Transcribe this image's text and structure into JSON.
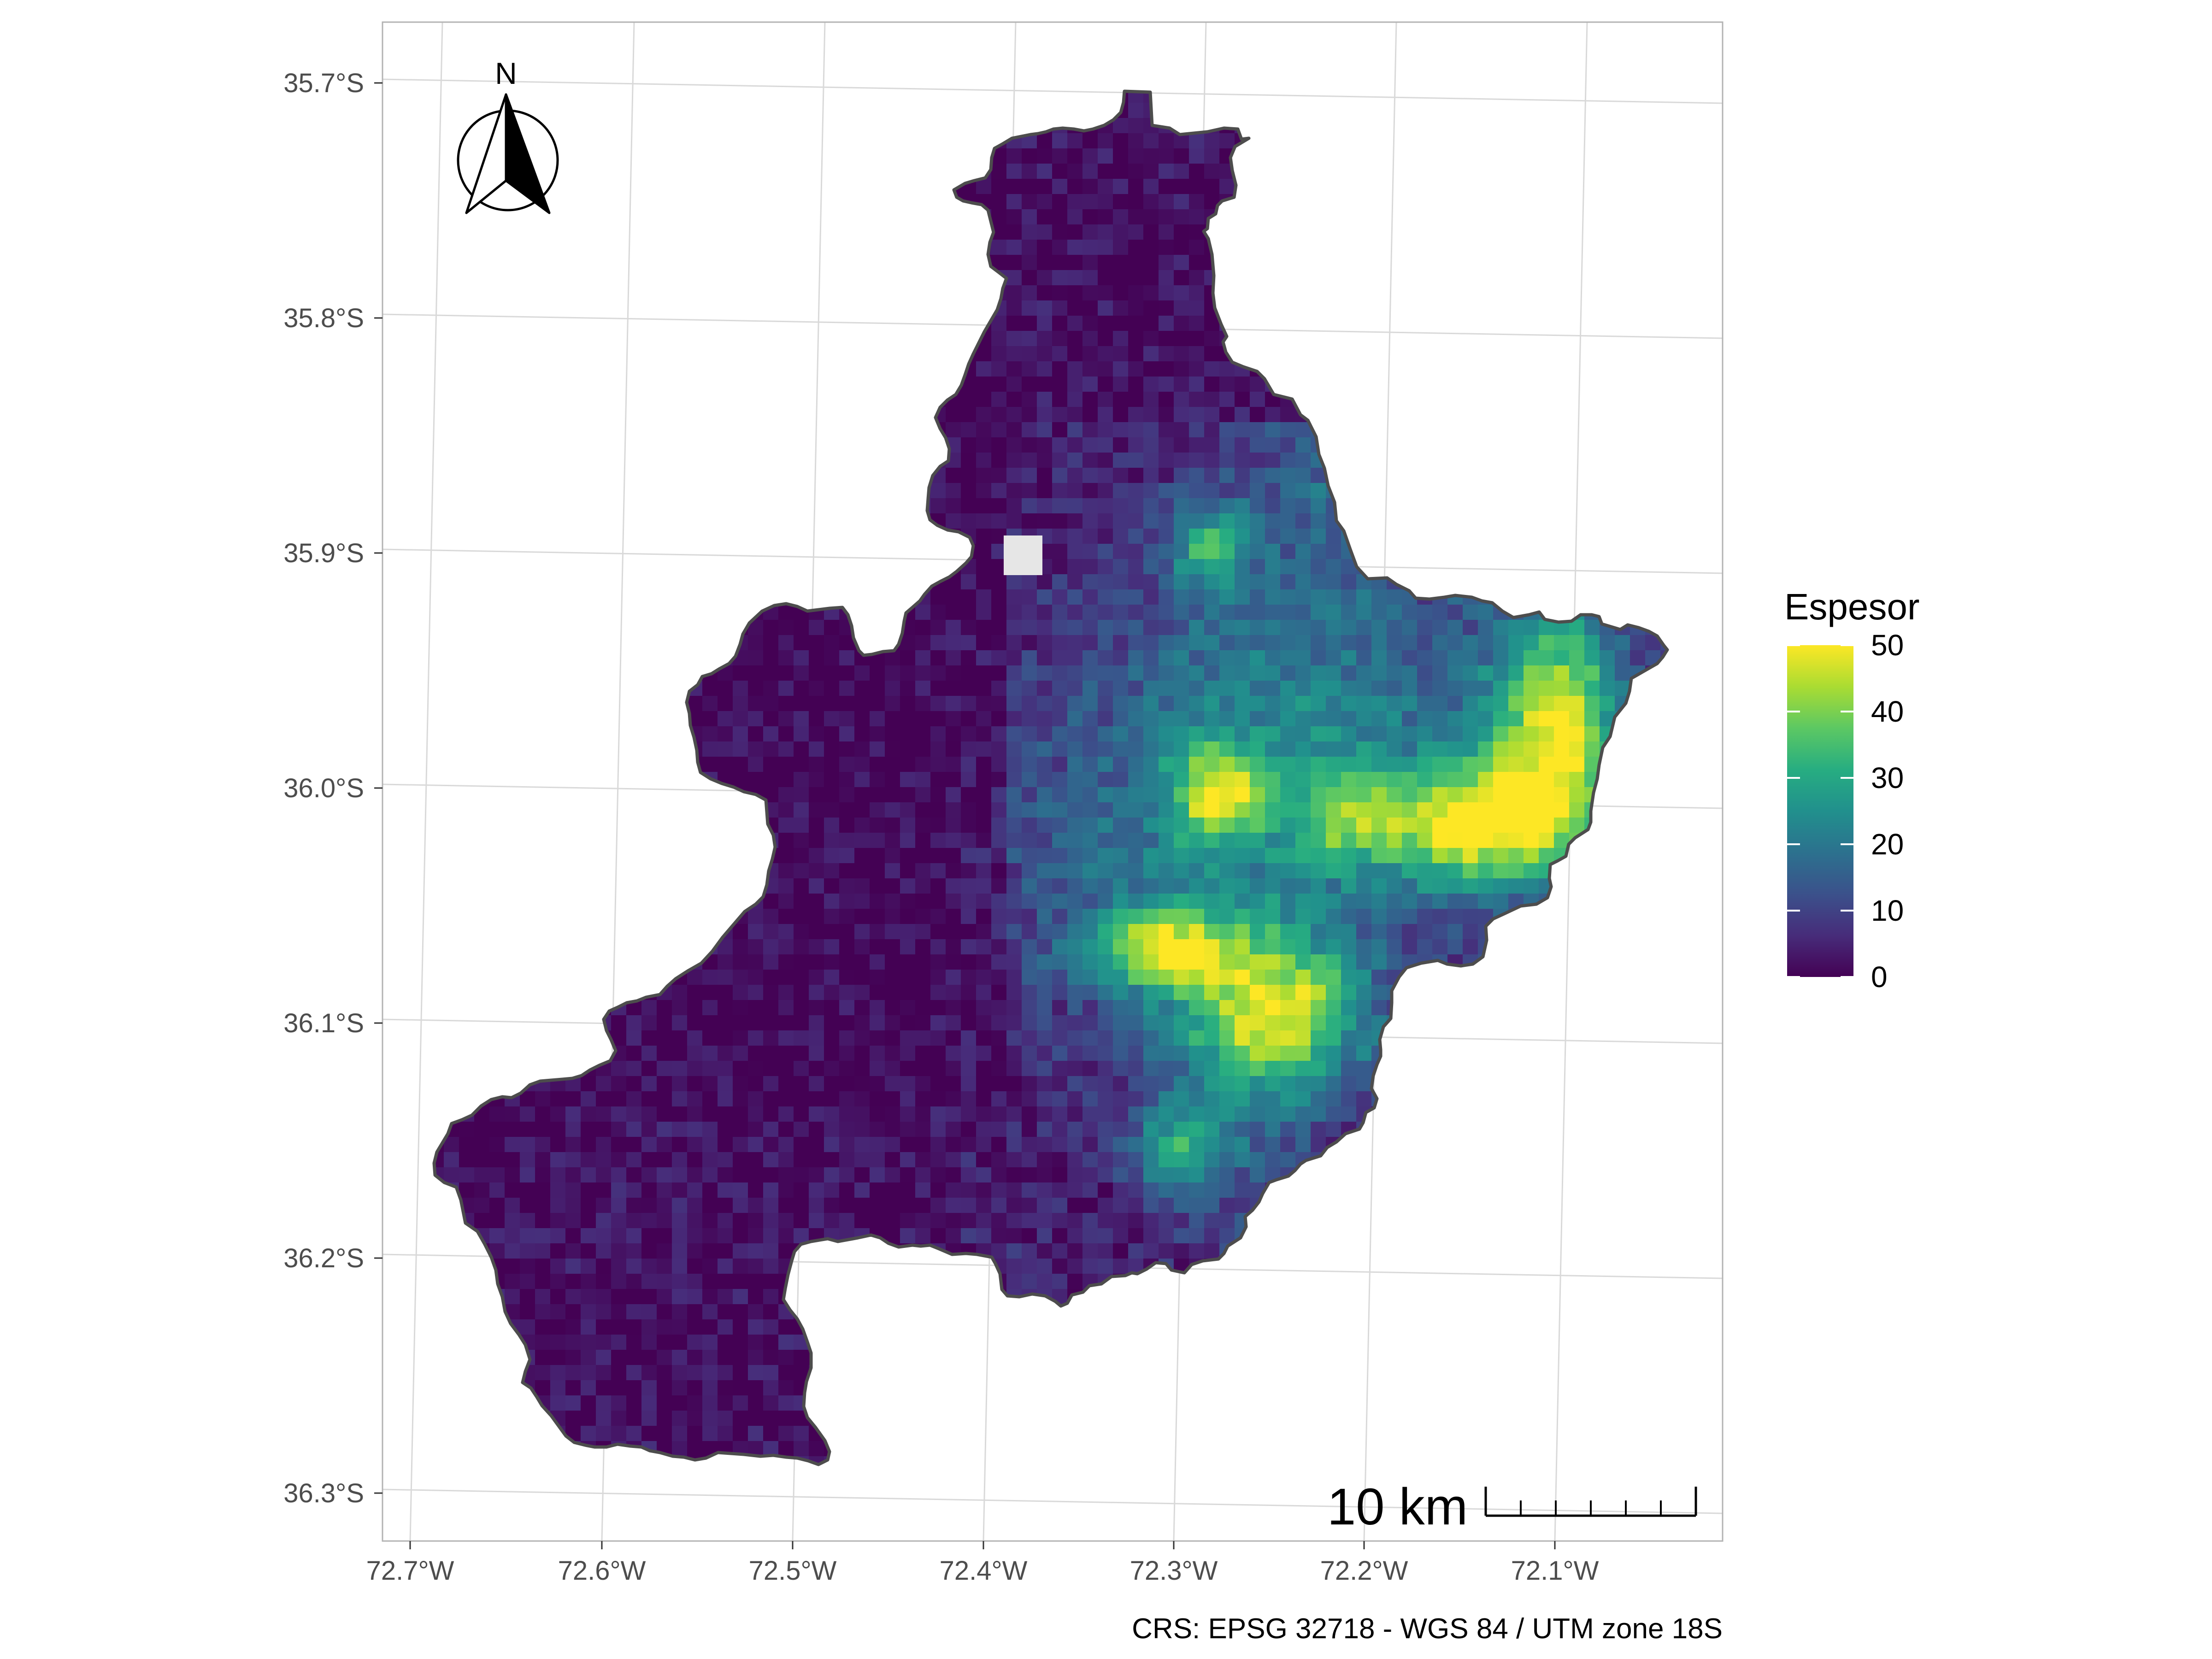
{
  "map": {
    "caption": "CRS: EPSG 32718 - WGS 84 / UTM zone 18S",
    "lat_labels": [
      "35.7°S",
      "35.8°S",
      "35.9°S",
      "36.0°S",
      "36.1°S",
      "36.2°S",
      "36.3°S"
    ],
    "lon_labels": [
      "72.7°W",
      "72.6°W",
      "72.5°W",
      "72.4°W",
      "72.3°W",
      "72.2°W",
      "72.1°W"
    ],
    "lat_values": [
      -35.7,
      -35.8,
      -35.9,
      -36.0,
      -36.1,
      -36.2,
      -36.3
    ],
    "lon_values": [
      -72.7,
      -72.6,
      -72.5,
      -72.4,
      -72.3,
      -72.2,
      -72.1
    ],
    "north_arrow_label": "N",
    "scale_bar_label": "10 km",
    "layers": [
      "raster: Espesor",
      "basin outline"
    ],
    "colors": {
      "outline": "#4d4d4d",
      "grid": "#d9d9d9",
      "panel_border": "#b3b3b3",
      "nodata": "#e6e6e6"
    }
  },
  "legend": {
    "title": "Espesor",
    "breaks": [
      "0",
      "10",
      "20",
      "30",
      "40",
      "50"
    ],
    "range": [
      0,
      50
    ],
    "palette": [
      "#440154",
      "#472c7a",
      "#3b518b",
      "#2c718e",
      "#21908d",
      "#27ad81",
      "#5cc863",
      "#aadc32",
      "#fde725"
    ]
  }
}
